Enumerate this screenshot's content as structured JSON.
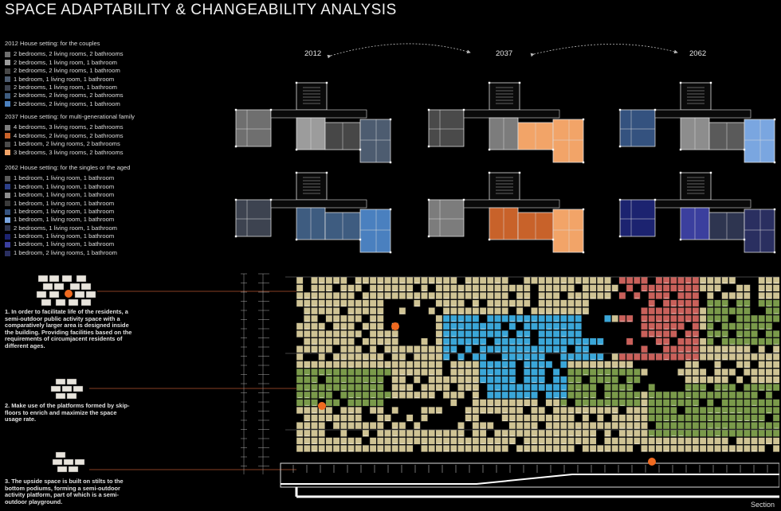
{
  "title": "SPACE ADAPTABILITY & CHANGEABILITY ANALYSIS",
  "years": [
    "2012",
    "2037",
    "2062"
  ],
  "legend_2012": {
    "heading": "2012 House setting: for the couples",
    "items": [
      {
        "label": "2 bedrooms, 2 living rooms, 2 bathrooms",
        "color": "#6f6f6f"
      },
      {
        "label": "2 bedrooms, 1 living room, 1 bathroom",
        "color": "#9c9c9c"
      },
      {
        "label": "2 bedrooms, 2 living rooms, 1 bathroom",
        "color": "#474747"
      },
      {
        "label": "1 bedroom, 1 living room, 1 bathroom",
        "color": "#4d5c70"
      },
      {
        "label": "2 bedrooms, 1 living room, 1 bathroom",
        "color": "#3d4350"
      },
      {
        "label": "2 bedrooms, 2 living rooms, 2 bathrooms",
        "color": "#3e5c80"
      },
      {
        "label": "2 bedrooms, 2 living rooms, 1 bathroom",
        "color": "#4a80bf"
      }
    ]
  },
  "legend_2037": {
    "heading": "2037 House setting: for multi-generational family",
    "items": [
      {
        "label": "4 bedrooms, 3 living rooms, 2 bathrooms",
        "color": "#7c7c7c"
      },
      {
        "label": "4 bedrooms, 2 living rooms, 2 bathrooms",
        "color": "#c8622a"
      },
      {
        "label": "1 bedroom, 2 living rooms, 2 bathrooms",
        "color": "#4a4a4a"
      },
      {
        "label": "3 bedrooms, 3 living rooms, 2 bathrooms",
        "color": "#f2a468"
      }
    ]
  },
  "legend_2062": {
    "heading": "2062 House setting: for the singles or the aged",
    "items": [
      {
        "label": "1 bedroom, 1 living room, 1 bathroom",
        "color": "#5a5a5a"
      },
      {
        "label": "1 bedroom, 1 living room, 1 bathroom",
        "color": "#2c3f88"
      },
      {
        "label": "1 bedroom, 1 living room, 1 bathroom",
        "color": "#8d8d8d"
      },
      {
        "label": "1 bedroom, 1 living room, 1 bathroom",
        "color": "#3a3a3a"
      },
      {
        "label": "1 bedroom, 1 living room, 1 bathroom",
        "color": "#34527f"
      },
      {
        "label": "1 bedroom, 1 living room, 1 bathroom",
        "color": "#7aa6e0"
      },
      {
        "label": "2 bedrooms, 1 living room, 1 bathroom",
        "color": "#2e3550"
      },
      {
        "label": "1 bedroom, 1 living room, 1 bathroom",
        "color": "#1c2370"
      },
      {
        "label": "1 bedroom, 1 living room, 1 bathroom",
        "color": "#3b3f9e"
      },
      {
        "label": "1 bedroom, 2 living rooms, 1 bathroom",
        "color": "#2a2f60"
      }
    ]
  },
  "notes": [
    "1. In order to facilitate life of the residents, a semi-outdoor public activity space with a comparatively larger area is designed inside the building. Providing facilities based on the requirements of circumjacent residents of different ages.",
    "2. Make use of the platforms formed by skip-floors to enrich and maximize the space usage rate.",
    "3. The upside space is built on stilts to the bottom podiums, forming a semi-outdoor activity platform, part of which is a semi-outdoor playground."
  ],
  "section_label": "Section",
  "colors": {
    "module_beige": "#cfc394",
    "module_blue": "#3aa6d8",
    "module_green": "#7a9a4a",
    "module_red": "#c9605a",
    "marker_orange": "#f06a20",
    "guide_line": "#b4552f"
  }
}
